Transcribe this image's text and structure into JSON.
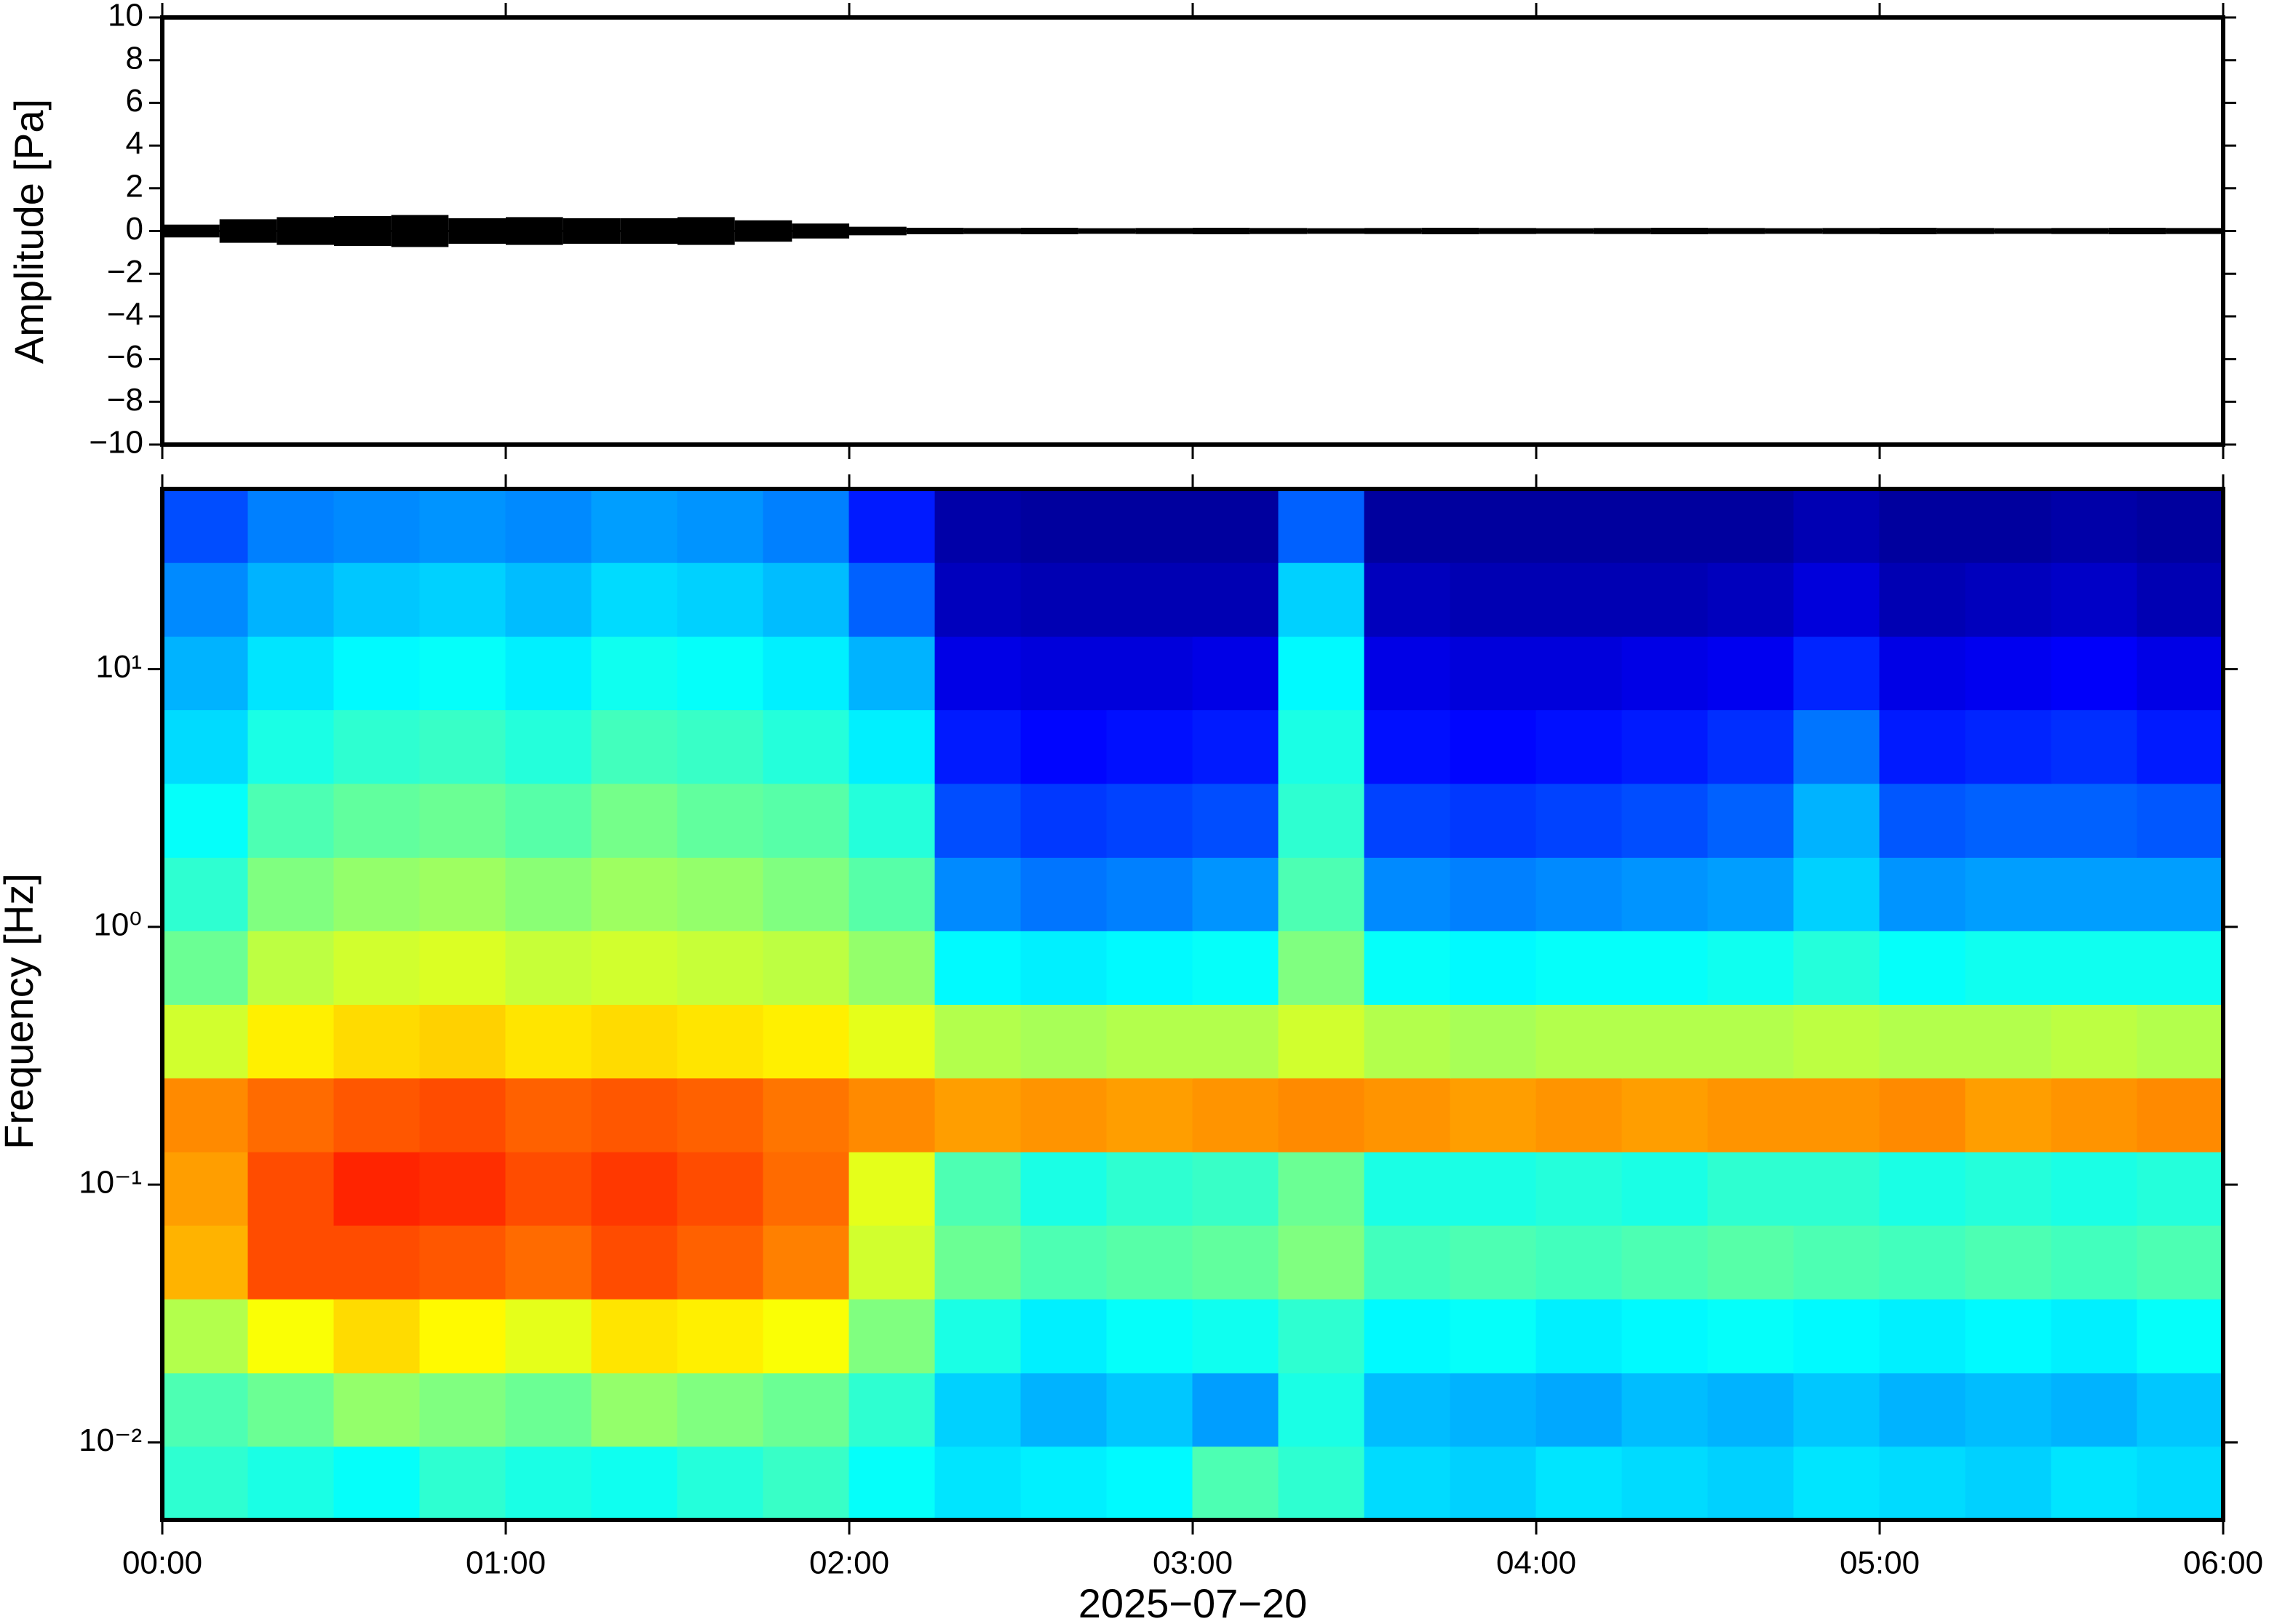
{
  "chart_data": [
    {
      "type": "waveform",
      "ylabel": "Amplitude [Pa]",
      "xlim": [
        0,
        360
      ],
      "ylim": [
        -10,
        10
      ],
      "yticks": [
        {
          "value": -10,
          "label": "−10"
        },
        {
          "value": -8,
          "label": "−8"
        },
        {
          "value": -6,
          "label": "−6"
        },
        {
          "value": -4,
          "label": "−4"
        },
        {
          "value": -2,
          "label": "−2"
        },
        0,
        2,
        4,
        6,
        8,
        10
      ],
      "color": "#000000",
      "x": [
        5,
        15,
        25,
        35,
        45,
        55,
        65,
        75,
        85,
        95,
        105,
        115,
        125,
        135,
        145,
        155,
        165,
        175,
        185,
        195,
        205,
        215,
        225,
        235,
        245,
        255,
        265,
        275,
        285,
        295,
        305,
        315,
        325,
        335,
        345,
        355
      ],
      "values": [
        0.3,
        0.55,
        0.65,
        0.7,
        0.75,
        0.6,
        0.65,
        0.6,
        0.6,
        0.65,
        0.5,
        0.35,
        0.2,
        0.15,
        0.14,
        0.15,
        0.13,
        0.14,
        0.15,
        0.14,
        0.13,
        0.14,
        0.15,
        0.14,
        0.13,
        0.14,
        0.15,
        0.14,
        0.13,
        0.14,
        0.15,
        0.14,
        0.13,
        0.14,
        0.15,
        0.14
      ]
    },
    {
      "type": "spectrogram",
      "ylabel": "Frequency [Hz]",
      "xlabel": "2025−07−20",
      "xlim": [
        0,
        360
      ],
      "xticks": [
        {
          "value": 0,
          "label": "00:00"
        },
        {
          "value": 60,
          "label": "01:00"
        },
        {
          "value": 120,
          "label": "02:00"
        },
        {
          "value": 180,
          "label": "03:00"
        },
        {
          "value": 240,
          "label": "04:00"
        },
        {
          "value": 300,
          "label": "05:00"
        },
        {
          "value": 360,
          "label": "06:00"
        }
      ],
      "ylim": [
        0.005,
        50
      ],
      "log_y": true,
      "yticks": [
        {
          "value": 0.01,
          "label": "10⁻²"
        },
        {
          "value": 0.1,
          "label": "10⁻¹"
        },
        {
          "value": 1,
          "label": "10⁰"
        },
        {
          "value": 10,
          "label": "10¹"
        }
      ],
      "colormap": "jet",
      "x_bins": [
        0,
        15,
        30,
        45,
        60,
        75,
        90,
        105,
        120,
        135,
        150,
        165,
        180,
        195,
        210,
        225,
        240,
        255,
        270,
        285,
        300,
        315,
        330,
        345,
        360
      ],
      "y_bins": [
        0.005,
        0.00965,
        0.0186,
        0.036,
        0.0695,
        0.134,
        0.259,
        0.5,
        0.965,
        1.86,
        3.6,
        6.95,
        13.4,
        25.9,
        50
      ],
      "values": [
        [
          0.42,
          0.4,
          0.38,
          0.42,
          0.4,
          0.39,
          0.41,
          0.43,
          0.38,
          0.35,
          0.36,
          0.37,
          0.45,
          0.42,
          0.34,
          0.33,
          0.35,
          0.34,
          0.33,
          0.35,
          0.34,
          0.33,
          0.35,
          0.34
        ],
        [
          0.45,
          0.48,
          0.52,
          0.5,
          0.48,
          0.52,
          0.5,
          0.48,
          0.42,
          0.33,
          0.3,
          0.32,
          0.28,
          0.4,
          0.31,
          0.3,
          0.29,
          0.31,
          0.3,
          0.32,
          0.3,
          0.31,
          0.3,
          0.32
        ],
        [
          0.55,
          0.62,
          0.66,
          0.63,
          0.6,
          0.65,
          0.64,
          0.62,
          0.5,
          0.4,
          0.36,
          0.38,
          0.39,
          0.42,
          0.37,
          0.38,
          0.36,
          0.37,
          0.38,
          0.37,
          0.36,
          0.37,
          0.36,
          0.38
        ],
        [
          0.7,
          0.8,
          0.8,
          0.79,
          0.77,
          0.8,
          0.78,
          0.75,
          0.58,
          0.48,
          0.45,
          0.46,
          0.47,
          0.5,
          0.44,
          0.45,
          0.44,
          0.45,
          0.46,
          0.45,
          0.44,
          0.45,
          0.44,
          0.45
        ],
        [
          0.72,
          0.8,
          0.84,
          0.83,
          0.8,
          0.82,
          0.8,
          0.77,
          0.6,
          0.45,
          0.4,
          0.42,
          0.43,
          0.48,
          0.4,
          0.4,
          0.41,
          0.4,
          0.42,
          0.42,
          0.4,
          0.41,
          0.4,
          0.41
        ],
        [
          0.74,
          0.77,
          0.79,
          0.8,
          0.78,
          0.79,
          0.78,
          0.76,
          0.74,
          0.72,
          0.73,
          0.72,
          0.73,
          0.74,
          0.73,
          0.72,
          0.73,
          0.72,
          0.73,
          0.73,
          0.74,
          0.72,
          0.73,
          0.74
        ],
        [
          0.58,
          0.64,
          0.66,
          0.67,
          0.65,
          0.66,
          0.65,
          0.64,
          0.6,
          0.55,
          0.54,
          0.55,
          0.55,
          0.58,
          0.55,
          0.54,
          0.55,
          0.55,
          0.55,
          0.56,
          0.55,
          0.55,
          0.56,
          0.55
        ],
        [
          0.48,
          0.56,
          0.58,
          0.59,
          0.57,
          0.58,
          0.57,
          0.56,
          0.52,
          0.37,
          0.36,
          0.37,
          0.38,
          0.5,
          0.38,
          0.37,
          0.38,
          0.38,
          0.39,
          0.41,
          0.38,
          0.39,
          0.39,
          0.39
        ],
        [
          0.42,
          0.5,
          0.52,
          0.53,
          0.51,
          0.53,
          0.52,
          0.5,
          0.46,
          0.26,
          0.24,
          0.25,
          0.27,
          0.45,
          0.26,
          0.25,
          0.26,
          0.27,
          0.28,
          0.33,
          0.27,
          0.28,
          0.28,
          0.28
        ],
        [
          0.38,
          0.45,
          0.47,
          0.48,
          0.46,
          0.49,
          0.47,
          0.46,
          0.41,
          0.2,
          0.18,
          0.19,
          0.2,
          0.42,
          0.19,
          0.18,
          0.19,
          0.2,
          0.22,
          0.3,
          0.21,
          0.22,
          0.22,
          0.21
        ],
        [
          0.34,
          0.4,
          0.42,
          0.43,
          0.41,
          0.44,
          0.43,
          0.41,
          0.36,
          0.15,
          0.13,
          0.14,
          0.15,
          0.4,
          0.14,
          0.13,
          0.14,
          0.15,
          0.17,
          0.24,
          0.15,
          0.16,
          0.17,
          0.15
        ],
        [
          0.3,
          0.35,
          0.37,
          0.38,
          0.36,
          0.39,
          0.38,
          0.36,
          0.3,
          0.1,
          0.09,
          0.09,
          0.1,
          0.37,
          0.1,
          0.09,
          0.09,
          0.1,
          0.11,
          0.16,
          0.1,
          0.11,
          0.12,
          0.1
        ],
        [
          0.26,
          0.3,
          0.32,
          0.33,
          0.31,
          0.34,
          0.33,
          0.31,
          0.22,
          0.06,
          0.05,
          0.05,
          0.05,
          0.33,
          0.06,
          0.05,
          0.05,
          0.05,
          0.06,
          0.09,
          0.05,
          0.06,
          0.07,
          0.05
        ],
        [
          0.2,
          0.25,
          0.26,
          0.27,
          0.26,
          0.28,
          0.27,
          0.25,
          0.15,
          0.04,
          0.03,
          0.03,
          0.03,
          0.22,
          0.03,
          0.03,
          0.03,
          0.03,
          0.03,
          0.05,
          0.03,
          0.03,
          0.04,
          0.03
        ]
      ]
    }
  ]
}
